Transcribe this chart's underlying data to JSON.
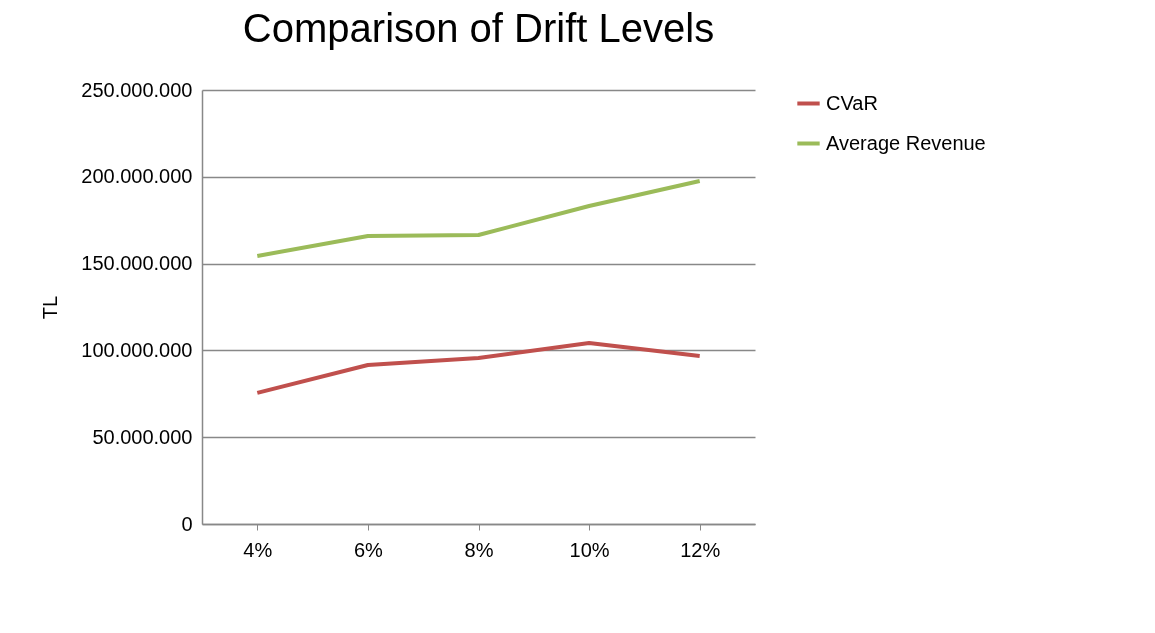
{
  "chart_data": {
    "type": "line",
    "title": "Comparison of Drift Levels",
    "ylabel": "TL",
    "categories": [
      "4%",
      "6%",
      "8%",
      "10%",
      "12%"
    ],
    "series": [
      {
        "name": "CVaR",
        "color": "#c0504d",
        "values": [
          75500000,
          91600000,
          95600000,
          104300000,
          96800000
        ]
      },
      {
        "name": "Average Revenue",
        "color": "#9bbb59",
        "values": [
          154400000,
          165900000,
          166500000,
          183200000,
          197600000
        ]
      }
    ],
    "ylim": [
      0,
      250000000
    ],
    "yticks": [
      {
        "value": 0,
        "label": "0"
      },
      {
        "value": 50000000,
        "label": "50.000.000"
      },
      {
        "value": 100000000,
        "label": "100.000.000"
      },
      {
        "value": 150000000,
        "label": "150.000.000"
      },
      {
        "value": 200000000,
        "label": "200.000.000"
      },
      {
        "value": 250000000,
        "label": "250.000.000"
      }
    ],
    "grid": "y",
    "legend": "right",
    "marker": "none",
    "line_style": "solid"
  }
}
